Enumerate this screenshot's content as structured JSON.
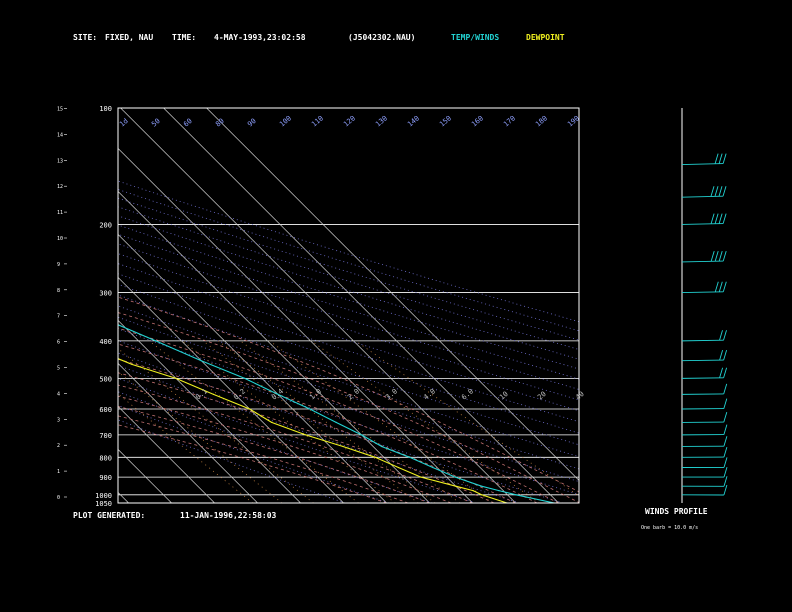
{
  "header": {
    "site_label": "SITE:",
    "site_value": "FIXED, NAU",
    "time_label": "TIME:",
    "time_value": "4-MAY-1993,23:02:58",
    "file_id": "(J5042302.NAU)",
    "legend_temp": "TEMP/WINDS",
    "legend_dew": "DEWPOINT"
  },
  "footer": {
    "generated_label": "PLOT GENERATED:",
    "generated_value": "11-JAN-1996,22:58:03",
    "winds_profile_label": "WINDS PROFILE",
    "barb_note": "One barb = 10.0 m/s"
  },
  "colors": {
    "background": "#000000",
    "frame": "#ffffff",
    "temperature": "#22d3d3",
    "dewpoint": "#f0f020",
    "dry_adiabat": "#6f6fd0",
    "mixing_ratio": "#c08040",
    "moist_adiabat": "#c07070",
    "wind_barbs": "#22d3d3",
    "legend_temp": "#22d3d3",
    "legend_dew": "#f0f020"
  },
  "chart_data": {
    "type": "line",
    "subtype": "skew-T log-P diagram",
    "pressure_axis_ticks": [
      100,
      200,
      300,
      400,
      500,
      600,
      700,
      800,
      900,
      1000,
      1050
    ],
    "height_axis_ticks": [
      0,
      1,
      2,
      3,
      4,
      5,
      6,
      7,
      8,
      9,
      10,
      11,
      12,
      13,
      14,
      15
    ],
    "temperature_isotherm_labels": [
      -110,
      -100,
      -90,
      -80,
      -70,
      -60,
      -50,
      -40,
      -30,
      -20,
      -10,
      0,
      10,
      20,
      30
    ],
    "dry_adiabat_labels": [
      "1d",
      "50",
      "60",
      "80",
      "90",
      "100",
      "110",
      "120",
      "130",
      "140",
      "150",
      "160",
      "170",
      "180",
      "190"
    ],
    "mixing_ratio_labels": [
      "0.1",
      "0.2",
      "0.4",
      "1.0",
      "2.0",
      "3.0",
      "4.0",
      "6.0",
      "10",
      "20",
      "40"
    ],
    "pressure_range": [
      100,
      1050
    ],
    "temperature_range": [
      -110,
      40
    ],
    "series": [
      {
        "name": "TEMP/WINDS",
        "points": [
          {
            "p": 1050,
            "t": 29
          },
          {
            "p": 1000,
            "t": 22
          },
          {
            "p": 975,
            "t": 19
          },
          {
            "p": 950,
            "t": 16
          },
          {
            "p": 900,
            "t": 12
          },
          {
            "p": 850,
            "t": 9
          },
          {
            "p": 800,
            "t": 6
          },
          {
            "p": 750,
            "t": 2
          },
          {
            "p": 700,
            "t": 0
          },
          {
            "p": 650,
            "t": -3
          },
          {
            "p": 600,
            "t": -6
          },
          {
            "p": 550,
            "t": -10
          },
          {
            "p": 500,
            "t": -14
          },
          {
            "p": 450,
            "t": -20
          },
          {
            "p": 400,
            "t": -26
          },
          {
            "p": 350,
            "t": -33
          },
          {
            "p": 300,
            "t": -42
          },
          {
            "p": 250,
            "t": -50
          },
          {
            "p": 200,
            "t": -58
          },
          {
            "p": 170,
            "t": -63
          },
          {
            "p": 150,
            "t": -66
          },
          {
            "p": 125,
            "t": -69
          },
          {
            "p": 100,
            "t": -72
          }
        ]
      },
      {
        "name": "DEWPOINT",
        "points": [
          {
            "p": 1050,
            "t": 18
          },
          {
            "p": 1000,
            "t": 14
          },
          {
            "p": 975,
            "t": 13
          },
          {
            "p": 950,
            "t": 10
          },
          {
            "p": 900,
            "t": 4
          },
          {
            "p": 850,
            "t": 1
          },
          {
            "p": 800,
            "t": -2
          },
          {
            "p": 750,
            "t": -7
          },
          {
            "p": 700,
            "t": -13
          },
          {
            "p": 650,
            "t": -18
          },
          {
            "p": 600,
            "t": -20
          },
          {
            "p": 550,
            "t": -25
          },
          {
            "p": 500,
            "t": -30
          },
          {
            "p": 460,
            "t": -37
          },
          {
            "p": 420,
            "t": -42
          },
          {
            "p": 400,
            "t": -47
          },
          {
            "p": 350,
            "t": -50
          },
          {
            "p": 320,
            "t": -48
          },
          {
            "p": 300,
            "t": -58
          },
          {
            "p": 270,
            "t": -64
          },
          {
            "p": 250,
            "t": -66
          },
          {
            "p": 220,
            "t": -70
          },
          {
            "p": 200,
            "t": -73
          },
          {
            "p": 185,
            "t": -76
          },
          {
            "p": 170,
            "t": -80
          },
          {
            "p": 150,
            "t": -84
          },
          {
            "p": 125,
            "t": -86
          },
          {
            "p": 100,
            "t": -86
          }
        ]
      }
    ],
    "wind_profile": [
      {
        "p": 140,
        "dir": 260,
        "speed_ms": 30
      },
      {
        "p": 170,
        "dir": 265,
        "speed_ms": 35
      },
      {
        "p": 200,
        "dir": 260,
        "speed_ms": 40
      },
      {
        "p": 250,
        "dir": 255,
        "speed_ms": 35
      },
      {
        "p": 300,
        "dir": 250,
        "speed_ms": 25
      },
      {
        "p": 400,
        "dir": 240,
        "speed_ms": 15
      },
      {
        "p": 450,
        "dir": 235,
        "speed_ms": 15
      },
      {
        "p": 500,
        "dir": 230,
        "speed_ms": 15
      },
      {
        "p": 550,
        "dir": 225,
        "speed_ms": 12
      },
      {
        "p": 600,
        "dir": 220,
        "speed_ms": 10
      },
      {
        "p": 650,
        "dir": 215,
        "speed_ms": 10
      },
      {
        "p": 700,
        "dir": 210,
        "speed_ms": 10
      },
      {
        "p": 750,
        "dir": 205,
        "speed_ms": 10
      },
      {
        "p": 800,
        "dir": 200,
        "speed_ms": 8
      },
      {
        "p": 850,
        "dir": 190,
        "speed_ms": 8
      },
      {
        "p": 900,
        "dir": 180,
        "speed_ms": 5
      },
      {
        "p": 950,
        "dir": 170,
        "speed_ms": 5
      },
      {
        "p": 1000,
        "dir": 160,
        "speed_ms": 5
      }
    ],
    "title": "",
    "xlabel": "",
    "ylabel": "",
    "grid": true,
    "legend": "top"
  }
}
